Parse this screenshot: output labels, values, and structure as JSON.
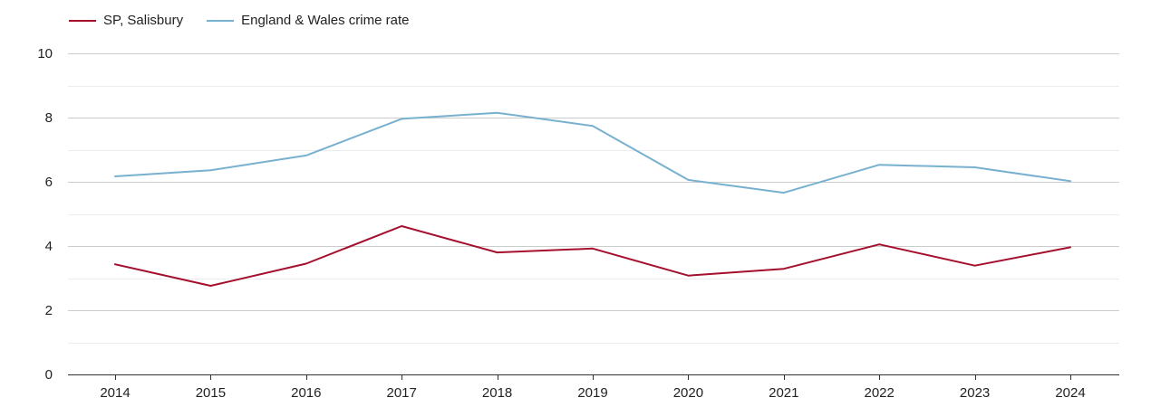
{
  "chart_data": {
    "type": "line",
    "title": "",
    "xlabel": "",
    "ylabel": "",
    "ylim": [
      0,
      10
    ],
    "yticks": [
      0,
      2,
      4,
      6,
      8,
      10
    ],
    "categories": [
      "2014",
      "2015",
      "2016",
      "2017",
      "2018",
      "2019",
      "2020",
      "2021",
      "2022",
      "2023",
      "2024"
    ],
    "legend_position": "top-left",
    "grid": true,
    "series": [
      {
        "name": "SP, Salisbury",
        "color": "#a50f2d",
        "values": [
          3.43,
          2.76,
          3.45,
          4.62,
          3.8,
          3.92,
          3.08,
          3.29,
          4.05,
          3.39,
          3.96
        ]
      },
      {
        "name": "England & Wales crime rate",
        "color": "#78b0d0",
        "values": [
          6.17,
          6.36,
          6.82,
          7.96,
          8.15,
          7.74,
          6.06,
          5.66,
          6.53,
          6.45,
          6.02
        ]
      }
    ]
  }
}
